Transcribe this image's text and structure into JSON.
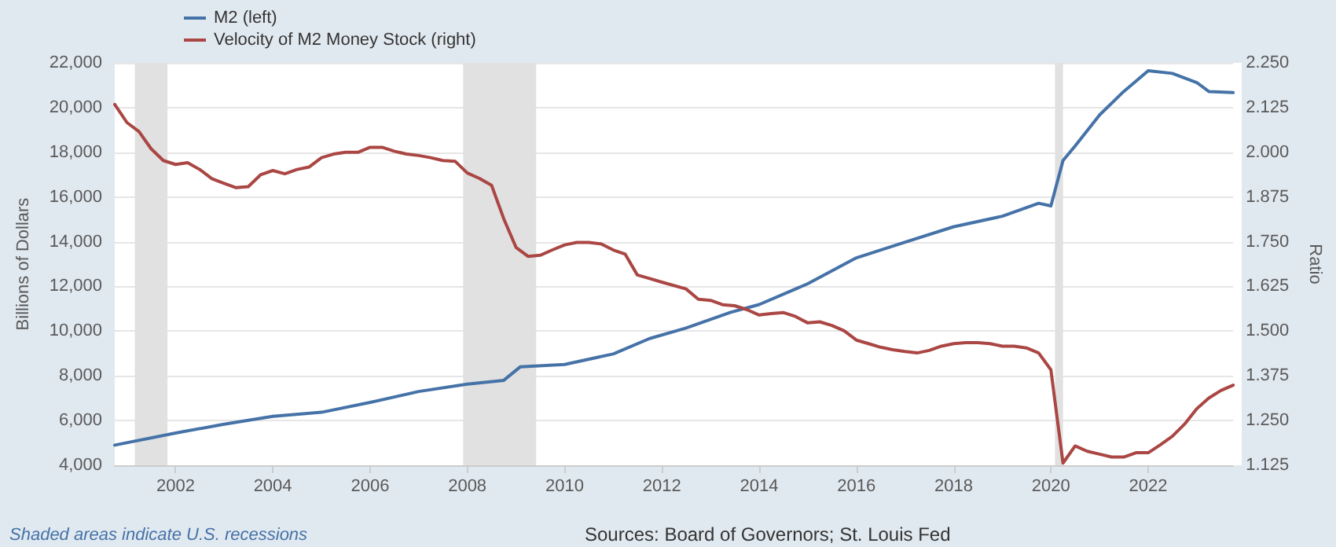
{
  "chart_data": {
    "type": "line",
    "xlabel": null,
    "ylabel": "Billions of Dollars",
    "y2label": "Ratio",
    "annotations": [
      "Shaded areas indicate U.S. recessions",
      "Sources: Board of Governors; St. Louis Fed"
    ],
    "series": [
      {
        "name": "M2 (left)",
        "color": "#4572a7",
        "x": [
          "2000-10",
          "2002-01",
          "2003-01",
          "2004-01",
          "2005-01",
          "2006-01",
          "2007-01",
          "2008-01",
          "2008-10",
          "2009-02",
          "2010-01",
          "2011-01",
          "2011-10",
          "2012-07",
          "2013-06",
          "2014-01",
          "2015-01",
          "2016-01",
          "2017-01",
          "2018-01",
          "2019-01",
          "2019-10",
          "2020-01",
          "2020-04",
          "2020-07",
          "2021-01",
          "2021-07",
          "2022-01",
          "2022-07",
          "2023-01",
          "2023-04",
          "2023-10"
        ],
        "values": [
          4900,
          5440,
          5840,
          6190,
          6370,
          6810,
          7300,
          7630,
          7800,
          8400,
          8510,
          8980,
          9670,
          10140,
          10840,
          11190,
          12120,
          13280,
          13980,
          14670,
          15140,
          15720,
          15600,
          17630,
          18280,
          19670,
          20720,
          21650,
          21530,
          21120,
          20720,
          20670
        ]
      },
      {
        "name": "Velocity of M2 Money Stock (right)",
        "color": "#aa4643",
        "axis": "y2",
        "x": [
          "2000-10",
          "2001-01",
          "2001-04",
          "2001-07",
          "2001-10",
          "2002-01",
          "2002-04",
          "2002-07",
          "2002-10",
          "2003-01",
          "2003-04",
          "2003-07",
          "2003-10",
          "2004-01",
          "2004-04",
          "2004-07",
          "2004-10",
          "2005-01",
          "2005-04",
          "2005-07",
          "2005-10",
          "2006-01",
          "2006-04",
          "2006-07",
          "2006-10",
          "2007-01",
          "2007-04",
          "2007-07",
          "2007-10",
          "2008-01",
          "2008-04",
          "2008-07",
          "2008-10",
          "2009-01",
          "2009-04",
          "2009-07",
          "2009-10",
          "2010-01",
          "2010-04",
          "2010-07",
          "2010-10",
          "2011-01",
          "2011-04",
          "2011-07",
          "2011-10",
          "2012-01",
          "2012-07",
          "2012-10",
          "2013-01",
          "2013-04",
          "2013-07",
          "2013-10",
          "2014-01",
          "2014-04",
          "2014-07",
          "2014-10",
          "2015-01",
          "2015-04",
          "2015-07",
          "2015-10",
          "2016-01",
          "2016-04",
          "2016-07",
          "2016-10",
          "2017-01",
          "2017-04",
          "2017-07",
          "2017-10",
          "2018-01",
          "2018-04",
          "2018-07",
          "2018-10",
          "2019-01",
          "2019-04",
          "2019-07",
          "2019-10",
          "2020-01",
          "2020-04",
          "2020-07",
          "2020-10",
          "2021-01",
          "2021-04",
          "2021-07",
          "2021-10",
          "2022-01",
          "2022-04",
          "2022-07",
          "2022-10",
          "2023-01",
          "2023-04",
          "2023-07",
          "2023-10"
        ],
        "values": [
          2.134,
          2.083,
          2.058,
          2.01,
          1.977,
          1.966,
          1.971,
          1.952,
          1.926,
          1.913,
          1.901,
          1.904,
          1.937,
          1.949,
          1.94,
          1.952,
          1.959,
          1.985,
          1.995,
          2.0,
          2.0,
          2.014,
          2.014,
          2.003,
          1.995,
          1.991,
          1.985,
          1.977,
          1.975,
          1.942,
          1.927,
          1.908,
          1.814,
          1.734,
          1.709,
          1.712,
          1.727,
          1.741,
          1.748,
          1.748,
          1.744,
          1.727,
          1.715,
          1.657,
          1.647,
          1.637,
          1.618,
          1.589,
          1.586,
          1.574,
          1.571,
          1.56,
          1.545,
          1.549,
          1.552,
          1.541,
          1.523,
          1.526,
          1.516,
          1.501,
          1.475,
          1.465,
          1.455,
          1.448,
          1.443,
          1.439,
          1.446,
          1.458,
          1.465,
          1.468,
          1.468,
          1.465,
          1.458,
          1.458,
          1.453,
          1.439,
          1.392,
          1.131,
          1.179,
          1.164,
          1.156,
          1.148,
          1.148,
          1.16,
          1.16,
          1.182,
          1.206,
          1.24,
          1.283,
          1.313,
          1.334,
          1.349
        ]
      }
    ],
    "xlim": [
      "2000-10",
      "2023-10"
    ],
    "xticks": [
      "2002",
      "2004",
      "2006",
      "2008",
      "2010",
      "2012",
      "2014",
      "2016",
      "2018",
      "2020",
      "2022"
    ],
    "ylim": [
      4000,
      22000
    ],
    "yticks": [
      {
        "value": 4000,
        "label": "4,000"
      },
      {
        "value": 6000,
        "label": "6,000"
      },
      {
        "value": 8000,
        "label": "8,000"
      },
      {
        "value": 10000,
        "label": "10,000"
      },
      {
        "value": 12000,
        "label": "12,000"
      },
      {
        "value": 14000,
        "label": "14,000"
      },
      {
        "value": 16000,
        "label": "16,000"
      },
      {
        "value": 18000,
        "label": "18,000"
      },
      {
        "value": 20000,
        "label": "20,000"
      },
      {
        "value": 22000,
        "label": "22,000"
      }
    ],
    "y2lim": [
      1.125,
      2.25
    ],
    "y2ticks": [
      {
        "value": 1.125,
        "label": "1.125"
      },
      {
        "value": 1.25,
        "label": "1.250"
      },
      {
        "value": 1.375,
        "label": "1.375"
      },
      {
        "value": 1.5,
        "label": "1.500"
      },
      {
        "value": 1.625,
        "label": "1.625"
      },
      {
        "value": 1.75,
        "label": "1.750"
      },
      {
        "value": 1.875,
        "label": "1.875"
      },
      {
        "value": 2,
        "label": "2.000"
      },
      {
        "value": 2.125,
        "label": "2.125"
      },
      {
        "value": 2.25,
        "label": "2.250"
      }
    ],
    "bands": [
      {
        "axis": "x",
        "from": "2001-03",
        "to": "2001-11",
        "color": "#e1e1e1"
      },
      {
        "axis": "x",
        "from": "2007-12",
        "to": "2009-06",
        "color": "#e1e1e1"
      },
      {
        "axis": "x",
        "from": "2020-02",
        "to": "2020-04",
        "color": "#e1e1e1"
      }
    ],
    "grid": "y",
    "legend": "top left",
    "marker": "none",
    "line_style": "solid"
  }
}
